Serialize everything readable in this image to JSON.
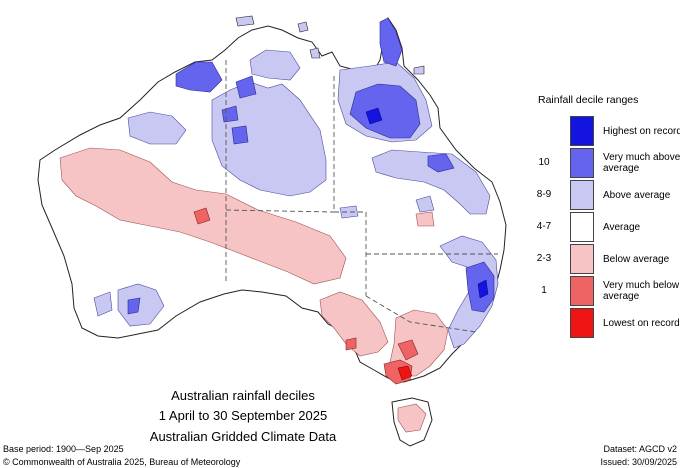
{
  "map": {
    "title_line1": "Australian rainfall deciles",
    "title_line2": "1 April to 30 September 2025",
    "title_line3": "Australian Gridded Climate Data",
    "legend_title": "Rainfall decile ranges",
    "legend": [
      {
        "decile": "",
        "label": "Highest on record",
        "color": "#1414e0"
      },
      {
        "decile": "10",
        "label": "Very much above average",
        "color": "#6464ee"
      },
      {
        "decile": "8-9",
        "label": "Above average",
        "color": "#c8c8f2"
      },
      {
        "decile": "4-7",
        "label": "Average",
        "color": "#ffffff"
      },
      {
        "decile": "2-3",
        "label": "Below average",
        "color": "#f6c4c4"
      },
      {
        "decile": "1",
        "label": "Very much below average",
        "color": "#ee6464"
      },
      {
        "decile": "",
        "label": "Lowest on record",
        "color": "#ee1414"
      }
    ],
    "footer": {
      "base_period": "Base period: 1900—Sep 2025",
      "copyright": "© Commonwealth of Australia 2025, Bureau of Meteorology",
      "dataset": "Dataset: AGCD v2",
      "issued": "Issued: 30/09/2025"
    }
  }
}
